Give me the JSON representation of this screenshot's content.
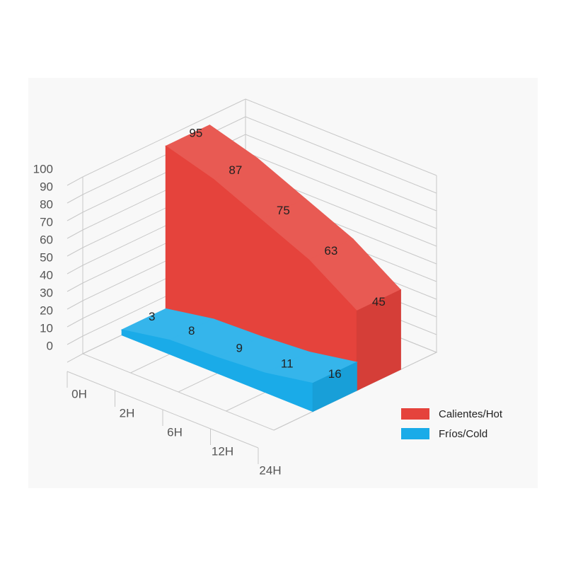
{
  "chart_data": {
    "type": "area3d",
    "categories": [
      "0H",
      "2H",
      "6H",
      "12H",
      "24H"
    ],
    "series": [
      {
        "name": "Calientes/Hot",
        "color": "#e5433c",
        "values": [
          95,
          87,
          75,
          63,
          45
        ]
      },
      {
        "name": "Fríos/Cold",
        "color": "#1aabe8",
        "values": [
          3,
          8,
          9,
          11,
          16
        ]
      }
    ],
    "ylim": [
      0,
      100
    ],
    "yticks": [
      0,
      10,
      20,
      30,
      40,
      50,
      60,
      70,
      80,
      90,
      100
    ],
    "grid": true
  }
}
